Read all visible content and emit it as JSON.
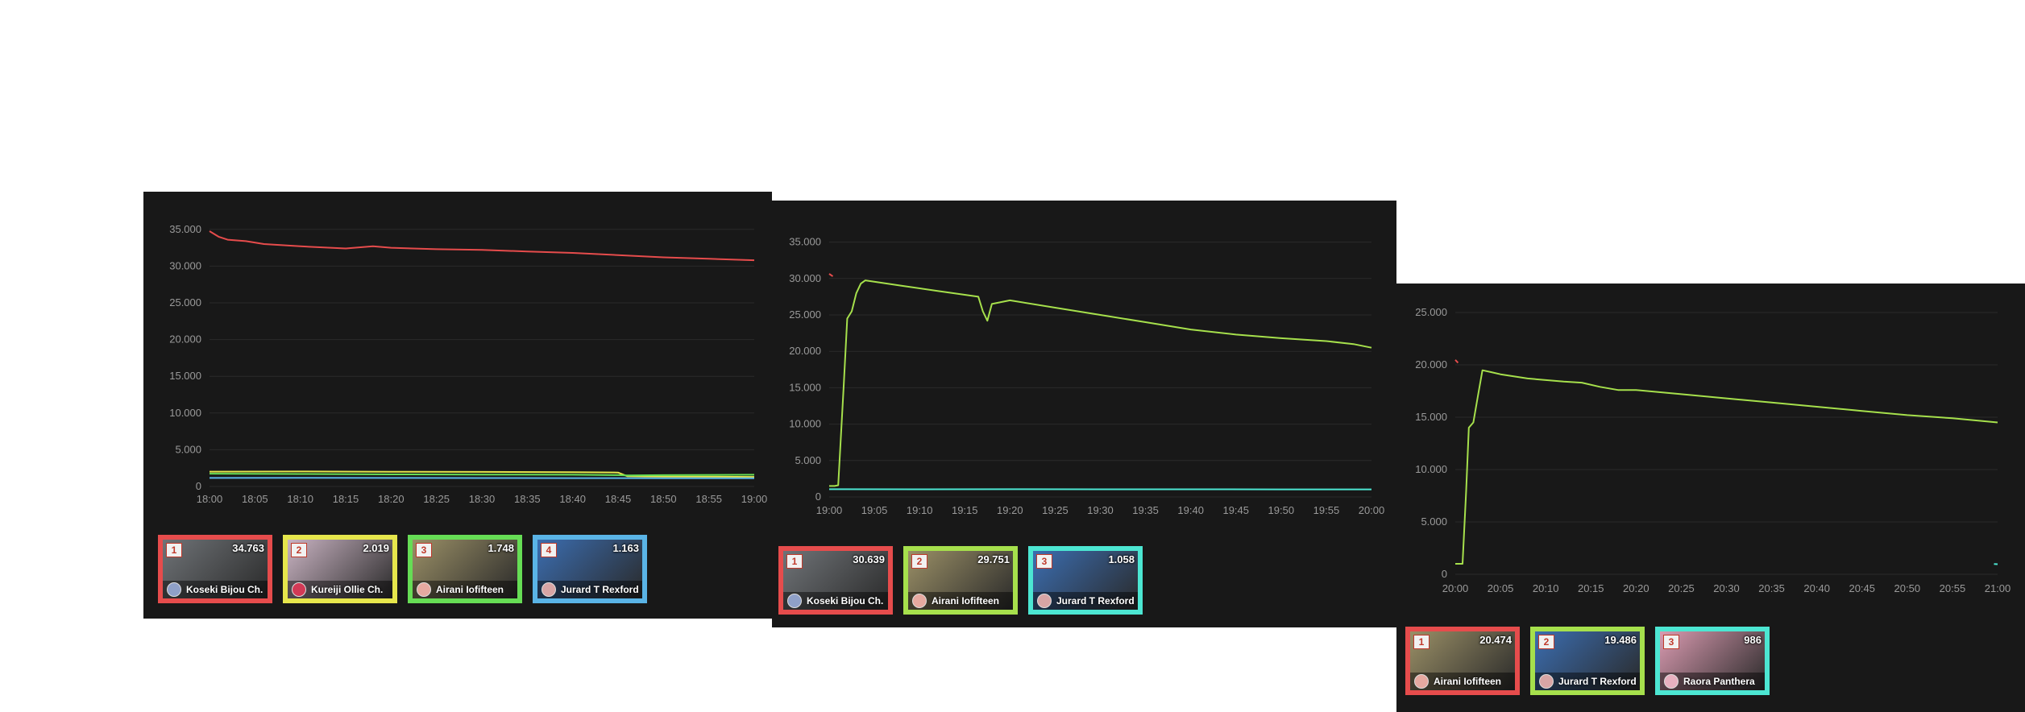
{
  "chart_data": [
    {
      "type": "line",
      "x_ticks": [
        "18:00",
        "18:05",
        "18:10",
        "18:15",
        "18:20",
        "18:25",
        "18:30",
        "18:35",
        "18:40",
        "18:45",
        "18:50",
        "18:55",
        "19:00"
      ],
      "y_ticks": [
        "35.000",
        "30.000",
        "25.000",
        "20.000",
        "15.000",
        "10.000",
        "5.000",
        "0"
      ],
      "xlim": [
        0,
        60
      ],
      "ylim": [
        0,
        37500
      ],
      "grid": true,
      "legend_placement": "bottom-left",
      "series": [
        {
          "color": "#e64c4c",
          "x": [
            0,
            1,
            2,
            4,
            6,
            10,
            15,
            18,
            20,
            25,
            30,
            35,
            40,
            45,
            50,
            55,
            60
          ],
          "values": [
            34763,
            34000,
            33600,
            33400,
            33000,
            32700,
            32400,
            32700,
            32500,
            32300,
            32200,
            32000,
            31800,
            31500,
            31200,
            31000,
            30800
          ]
        },
        {
          "color": "#e6e64c",
          "x": [
            0,
            10,
            20,
            30,
            40,
            45,
            46,
            50,
            60
          ],
          "values": [
            2019,
            2040,
            2010,
            1990,
            1950,
            1900,
            1400,
            1350,
            1300
          ]
        },
        {
          "color": "#66dd55",
          "x": [
            0,
            10,
            20,
            30,
            40,
            45,
            46,
            50,
            60
          ],
          "values": [
            1748,
            1700,
            1650,
            1620,
            1600,
            1550,
            1500,
            1550,
            1600
          ]
        },
        {
          "color": "#5ab4e6",
          "x": [
            0,
            10,
            20,
            30,
            40,
            50,
            60
          ],
          "values": [
            1163,
            1170,
            1160,
            1150,
            1140,
            1130,
            1120
          ]
        }
      ],
      "legend": [
        {
          "rank": "1",
          "viewers": "34.763",
          "name": "Koseki Bijou Ch.",
          "color": "#e64c4c",
          "thumb": "#6f7377",
          "avatar": "#8fa0c8"
        },
        {
          "rank": "2",
          "viewers": "2.019",
          "name": "Kureiji Ollie Ch.",
          "color": "#e6e64c",
          "thumb": "#c9b3c2",
          "avatar": "#d23a56"
        },
        {
          "rank": "3",
          "viewers": "1.748",
          "name": "Airani Iofifteen",
          "color": "#66dd55",
          "thumb": "#9a8f66",
          "avatar": "#e6a9a0"
        },
        {
          "rank": "4",
          "viewers": "1.163",
          "name": "Jurard T Rexford",
          "color": "#5ab4e6",
          "thumb": "#3b6db0",
          "avatar": "#d8a5a5"
        }
      ]
    },
    {
      "type": "line",
      "x_ticks": [
        "19:00",
        "19:05",
        "19:10",
        "19:15",
        "19:20",
        "19:25",
        "19:30",
        "19:35",
        "19:40",
        "19:45",
        "19:50",
        "19:55",
        "20:00"
      ],
      "y_ticks": [
        "35.000",
        "30.000",
        "25.000",
        "20.000",
        "15.000",
        "10.000",
        "5.000",
        "0"
      ],
      "xlim": [
        0,
        60
      ],
      "ylim": [
        0,
        37500
      ],
      "grid": true,
      "legend_placement": "bottom-left",
      "series": [
        {
          "color": "#e64c4c",
          "x": [
            0,
            0.4
          ],
          "values": [
            30639,
            30300
          ]
        },
        {
          "color": "#a6e04c",
          "x": [
            0,
            0.6,
            1,
            1.6,
            2,
            2.5,
            3,
            3.5,
            4,
            8,
            12,
            16.5,
            17,
            17.5,
            18,
            20,
            25,
            30,
            35,
            40,
            45,
            50,
            55,
            58,
            60
          ],
          "values": [
            1500,
            1500,
            1600,
            15000,
            24500,
            25500,
            28000,
            29300,
            29751,
            29000,
            28300,
            27500,
            25500,
            24200,
            26500,
            27000,
            26000,
            25000,
            24000,
            23000,
            22300,
            21800,
            21400,
            21000,
            20500
          ]
        },
        {
          "color": "#4ce6d2",
          "x": [
            0,
            10,
            20,
            30,
            40,
            50,
            60
          ],
          "values": [
            1058,
            1050,
            1060,
            1055,
            1050,
            1045,
            1040
          ]
        }
      ],
      "legend": [
        {
          "rank": "1",
          "viewers": "30.639",
          "name": "Koseki Bijou Ch.",
          "color": "#e64c4c",
          "thumb": "#6f7377",
          "avatar": "#8fa0c8"
        },
        {
          "rank": "2",
          "viewers": "29.751",
          "name": "Airani Iofifteen",
          "color": "#a6e04c",
          "thumb": "#9a8f66",
          "avatar": "#e6a9a0"
        },
        {
          "rank": "3",
          "viewers": "1.058",
          "name": "Jurard T Rexford",
          "color": "#4ce6d2",
          "thumb": "#3b6db0",
          "avatar": "#d8a5a5"
        }
      ]
    },
    {
      "type": "line",
      "x_ticks": [
        "20:00",
        "20:05",
        "20:10",
        "20:15",
        "20:20",
        "20:25",
        "20:30",
        "20:35",
        "20:40",
        "20:45",
        "20:50",
        "20:55",
        "21:00"
      ],
      "y_ticks": [
        "25.000",
        "20.000",
        "15.000",
        "10.000",
        "5.000",
        "0"
      ],
      "xlim": [
        0,
        60
      ],
      "ylim": [
        0,
        26000
      ],
      "grid": true,
      "legend_placement": "bottom-left",
      "series": [
        {
          "color": "#e64c4c",
          "x": [
            0,
            0.3
          ],
          "values": [
            20474,
            20200
          ]
        },
        {
          "color": "#a6e04c",
          "x": [
            0,
            0.8,
            1.2,
            1.5,
            2,
            2.5,
            3,
            4,
            5,
            8,
            12,
            14,
            16,
            18,
            20,
            25,
            30,
            35,
            40,
            45,
            50,
            55,
            60
          ],
          "values": [
            1000,
            1000,
            8000,
            14000,
            14500,
            17000,
            19486,
            19300,
            19100,
            18700,
            18400,
            18300,
            17900,
            17600,
            17600,
            17200,
            16800,
            16400,
            16000,
            15600,
            15200,
            14900,
            14500
          ]
        },
        {
          "color": "#4ce6d2",
          "x": [
            59.6,
            60
          ],
          "values": [
            986,
            960
          ]
        }
      ],
      "legend": [
        {
          "rank": "1",
          "viewers": "20.474",
          "name": "Airani Iofifteen",
          "color": "#e64c4c",
          "thumb": "#9a8f66",
          "avatar": "#e6a9a0"
        },
        {
          "rank": "2",
          "viewers": "19.486",
          "name": "Jurard T Rexford",
          "color": "#a6e04c",
          "thumb": "#3b6db0",
          "avatar": "#d8a5a5"
        },
        {
          "rank": "3",
          "viewers": "986",
          "name": "Raora Panthera",
          "color": "#4ce6d2",
          "thumb": "#d99ab0",
          "avatar": "#e8b0c0"
        }
      ]
    }
  ]
}
